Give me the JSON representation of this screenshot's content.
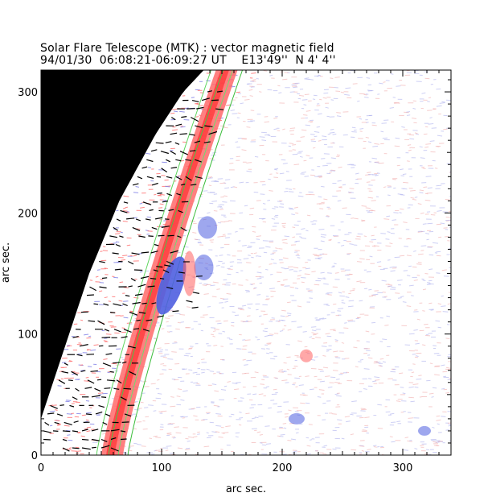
{
  "title": "Solar Flare Telescope (MTK) : vector magnetic field",
  "subtitle": "94/01/30  06:08:21-06:09:27 UT    E13'49''  N 4' 4''",
  "chart_data": {
    "type": "heatmap",
    "title": "Solar Flare Telescope (MTK) : vector magnetic field",
    "subtitle": "94/01/30  06:08:21-06:09:27 UT    E13'49''  N 4' 4''",
    "xlabel": "arc sec.",
    "ylabel": "arc sec.",
    "xlim": [
      0,
      340
    ],
    "ylim": [
      0,
      318
    ],
    "x_ticks": [
      0,
      100,
      200,
      300
    ],
    "y_ticks": [
      0,
      100,
      200,
      300
    ],
    "x_tick_labels": [
      "0",
      "100",
      "200",
      "300"
    ],
    "y_tick_labels": [
      "0",
      "100",
      "200",
      "300"
    ],
    "colors": {
      "positive_field": "#ff6060",
      "negative_field": "#4f5fe0",
      "off_disk": "#000000",
      "transverse_vectors": "#000000",
      "contours": "#4fcf4f"
    },
    "features": [
      {
        "label": "negative-polarity",
        "x": 108,
        "y": 140,
        "polarity": "negative"
      },
      {
        "label": "negative-polarity",
        "x": 135,
        "y": 155,
        "polarity": "negative"
      },
      {
        "label": "negative-polarity",
        "x": 138,
        "y": 188,
        "polarity": "negative"
      },
      {
        "label": "positive-polarity",
        "x": 123,
        "y": 150,
        "polarity": "positive"
      },
      {
        "label": "positive-polarity",
        "x": 220,
        "y": 82,
        "polarity": "positive"
      },
      {
        "label": "negative-polarity",
        "x": 212,
        "y": 30,
        "polarity": "negative"
      },
      {
        "label": "negative-polarity",
        "x": 318,
        "y": 20,
        "polarity": "negative"
      }
    ],
    "limb": [
      [
        0,
        30
      ],
      [
        20,
        90
      ],
      [
        40,
        150
      ],
      [
        65,
        210
      ],
      [
        95,
        265
      ],
      [
        118,
        300
      ],
      [
        135,
        318
      ]
    ]
  }
}
